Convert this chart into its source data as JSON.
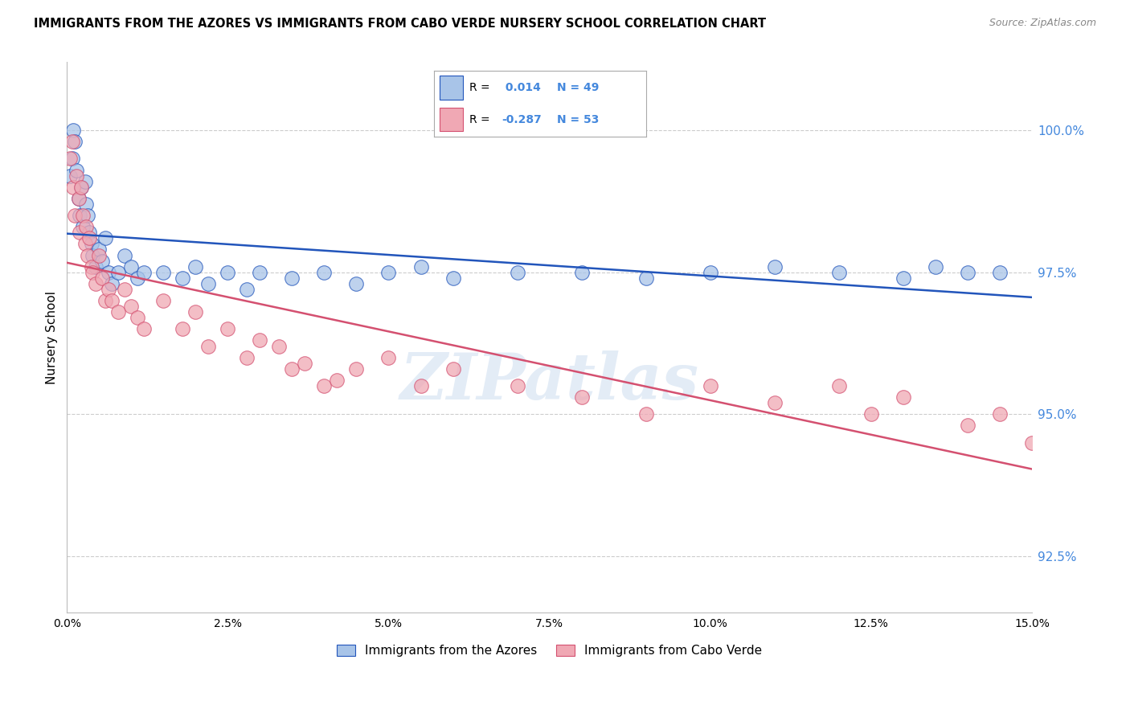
{
  "title": "IMMIGRANTS FROM THE AZORES VS IMMIGRANTS FROM CABO VERDE NURSERY SCHOOL CORRELATION CHART",
  "source": "Source: ZipAtlas.com",
  "xlabel_azores": "Immigrants from the Azores",
  "xlabel_caboverde": "Immigrants from Cabo Verde",
  "ylabel": "Nursery School",
  "xlim": [
    0.0,
    15.0
  ],
  "ylim": [
    91.5,
    101.2
  ],
  "yticks": [
    92.5,
    95.0,
    97.5,
    100.0
  ],
  "xticks": [
    0.0,
    2.5,
    5.0,
    7.5,
    10.0,
    12.5,
    15.0
  ],
  "r_azores": 0.014,
  "n_azores": 49,
  "r_caboverde": -0.287,
  "n_caboverde": 53,
  "color_azores": "#a8c4e8",
  "color_caboverde": "#f0a8b4",
  "line_color_azores": "#2255bb",
  "line_color_caboverde": "#d45070",
  "tick_color": "#4488dd",
  "watermark": "ZIPatlas",
  "azores_x": [
    0.05,
    0.08,
    0.1,
    0.12,
    0.15,
    0.18,
    0.2,
    0.22,
    0.25,
    0.28,
    0.3,
    0.32,
    0.35,
    0.38,
    0.4,
    0.45,
    0.5,
    0.55,
    0.6,
    0.65,
    0.7,
    0.8,
    0.9,
    1.0,
    1.1,
    1.2,
    1.5,
    1.8,
    2.0,
    2.2,
    2.5,
    2.8,
    3.0,
    3.5,
    4.0,
    4.5,
    5.0,
    5.5,
    6.0,
    7.0,
    8.0,
    9.0,
    10.0,
    11.0,
    12.0,
    13.0,
    13.5,
    14.0,
    14.5
  ],
  "azores_y": [
    99.2,
    99.5,
    100.0,
    99.8,
    99.3,
    98.8,
    98.5,
    99.0,
    98.3,
    99.1,
    98.7,
    98.5,
    98.2,
    98.0,
    97.8,
    97.6,
    97.9,
    97.7,
    98.1,
    97.5,
    97.3,
    97.5,
    97.8,
    97.6,
    97.4,
    97.5,
    97.5,
    97.4,
    97.6,
    97.3,
    97.5,
    97.2,
    97.5,
    97.4,
    97.5,
    97.3,
    97.5,
    97.6,
    97.4,
    97.5,
    97.5,
    97.4,
    97.5,
    97.6,
    97.5,
    97.4,
    97.6,
    97.5,
    97.5
  ],
  "caboverde_x": [
    0.05,
    0.08,
    0.1,
    0.12,
    0.15,
    0.18,
    0.2,
    0.22,
    0.25,
    0.28,
    0.3,
    0.32,
    0.35,
    0.38,
    0.4,
    0.45,
    0.5,
    0.55,
    0.6,
    0.65,
    0.7,
    0.8,
    0.9,
    1.0,
    1.1,
    1.2,
    1.5,
    1.8,
    2.0,
    2.2,
    2.5,
    2.8,
    3.0,
    3.5,
    4.0,
    4.5,
    5.0,
    5.5,
    6.0,
    7.0,
    8.0,
    9.0,
    10.0,
    11.0,
    12.0,
    12.5,
    13.0,
    14.0,
    14.5,
    15.0,
    3.3,
    3.7,
    4.2
  ],
  "caboverde_y": [
    99.5,
    99.8,
    99.0,
    98.5,
    99.2,
    98.8,
    98.2,
    99.0,
    98.5,
    98.0,
    98.3,
    97.8,
    98.1,
    97.6,
    97.5,
    97.3,
    97.8,
    97.4,
    97.0,
    97.2,
    97.0,
    96.8,
    97.2,
    96.9,
    96.7,
    96.5,
    97.0,
    96.5,
    96.8,
    96.2,
    96.5,
    96.0,
    96.3,
    95.8,
    95.5,
    95.8,
    96.0,
    95.5,
    95.8,
    95.5,
    95.3,
    95.0,
    95.5,
    95.2,
    95.5,
    95.0,
    95.3,
    94.8,
    95.0,
    94.5,
    96.2,
    95.9,
    95.6
  ]
}
